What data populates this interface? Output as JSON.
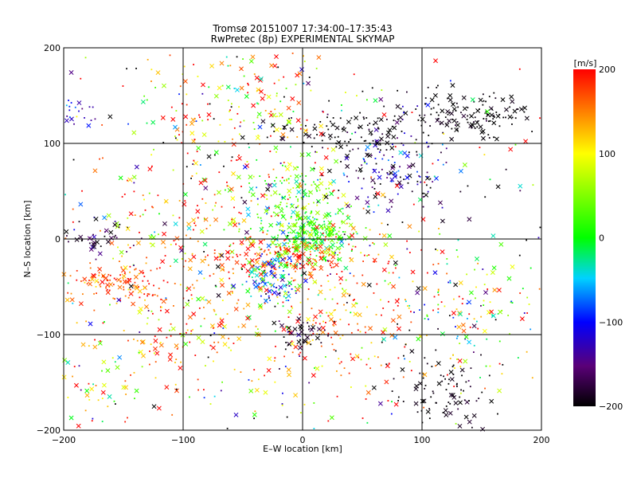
{
  "chart_data": {
    "type": "scatter",
    "title_line1": "Tromsø 20151007 17:34:00–17:35:43",
    "title_line2": "RwPretec (8p) EXPERIMENTAL SKYMAP",
    "xlabel": "E–W location [km]",
    "ylabel": "N–S location [km]",
    "xlim": [
      -200,
      200
    ],
    "ylim": [
      -200,
      200
    ],
    "xticks": [
      -200,
      -100,
      0,
      100,
      200
    ],
    "yticks": [
      -200,
      -100,
      0,
      100,
      200
    ],
    "xtick_labels": [
      "−200",
      "−100",
      "0",
      "100",
      "200"
    ],
    "ytick_labels": [
      "−200",
      "−100",
      "0",
      "100",
      "200"
    ],
    "grid": true,
    "colorbar": {
      "label": "[m/s]",
      "range": [
        -200,
        200
      ],
      "ticks": [
        200,
        100,
        0,
        -100,
        -200
      ],
      "tick_labels": [
        "200",
        "100",
        "0",
        "−100",
        "−200"
      ],
      "colormap": [
        "#000000",
        "#5a0078",
        "#0000ff",
        "#00d2ff",
        "#00ff00",
        "#ffff00",
        "#ff0000"
      ]
    },
    "markers": [
      "dot",
      "x"
    ],
    "clusters": [
      {
        "x": 10,
        "y": 5,
        "sx": 18,
        "sy": 14,
        "n": 260,
        "v": 20,
        "dv": 35
      },
      {
        "x": -10,
        "y": 40,
        "sx": 20,
        "sy": 25,
        "n": 160,
        "v": 40,
        "dv": 40
      },
      {
        "x": -15,
        "y": -20,
        "sx": 30,
        "sy": 10,
        "n": 160,
        "v": 180,
        "dv": 25
      },
      {
        "x": -25,
        "y": -40,
        "sx": 12,
        "sy": 15,
        "n": 110,
        "v": -60,
        "dv": 60
      },
      {
        "x": 75,
        "y": 75,
        "sx": 25,
        "sy": 20,
        "n": 150,
        "v": -150,
        "dv": 60
      },
      {
        "x": 45,
        "y": 110,
        "sx": 40,
        "sy": 12,
        "n": 100,
        "v": -200,
        "dv": 15
      },
      {
        "x": 140,
        "y": 130,
        "sx": 30,
        "sy": 12,
        "n": 140,
        "v": -200,
        "dv": 10
      },
      {
        "x": -155,
        "y": -45,
        "sx": 25,
        "sy": 12,
        "n": 130,
        "v": 170,
        "dv": 30
      },
      {
        "x": 120,
        "y": -160,
        "sx": 20,
        "sy": 20,
        "n": 90,
        "v": -195,
        "dv": 10
      },
      {
        "x": 30,
        "y": -80,
        "sx": 50,
        "sy": 40,
        "n": 240,
        "v": 150,
        "dv": 60
      },
      {
        "x": -100,
        "y": -100,
        "sx": 40,
        "sy": 30,
        "n": 130,
        "v": 150,
        "dv": 60
      },
      {
        "x": -60,
        "y": 130,
        "sx": 40,
        "sy": 40,
        "n": 170,
        "v": 120,
        "dv": 110
      },
      {
        "x": -100,
        "y": 10,
        "sx": 40,
        "sy": 30,
        "n": 130,
        "v": 140,
        "dv": 80
      },
      {
        "x": 140,
        "y": -70,
        "sx": 30,
        "sy": 40,
        "n": 110,
        "v": 30,
        "dv": 140
      },
      {
        "x": -170,
        "y": 0,
        "sx": 15,
        "sy": 8,
        "n": 40,
        "v": -170,
        "dv": 30
      },
      {
        "x": -190,
        "y": 130,
        "sx": 8,
        "sy": 8,
        "n": 20,
        "v": -120,
        "dv": 30
      },
      {
        "x": 0,
        "y": -100,
        "sx": 10,
        "sy": 8,
        "n": 40,
        "v": -180,
        "dv": 30
      },
      {
        "x": -180,
        "y": -150,
        "sx": 20,
        "sy": 30,
        "n": 50,
        "v": 60,
        "dv": 80
      },
      {
        "x": 0,
        "y": 0,
        "sx": 130,
        "sy": 120,
        "n": 550,
        "v": 0,
        "dv": 200
      }
    ]
  }
}
